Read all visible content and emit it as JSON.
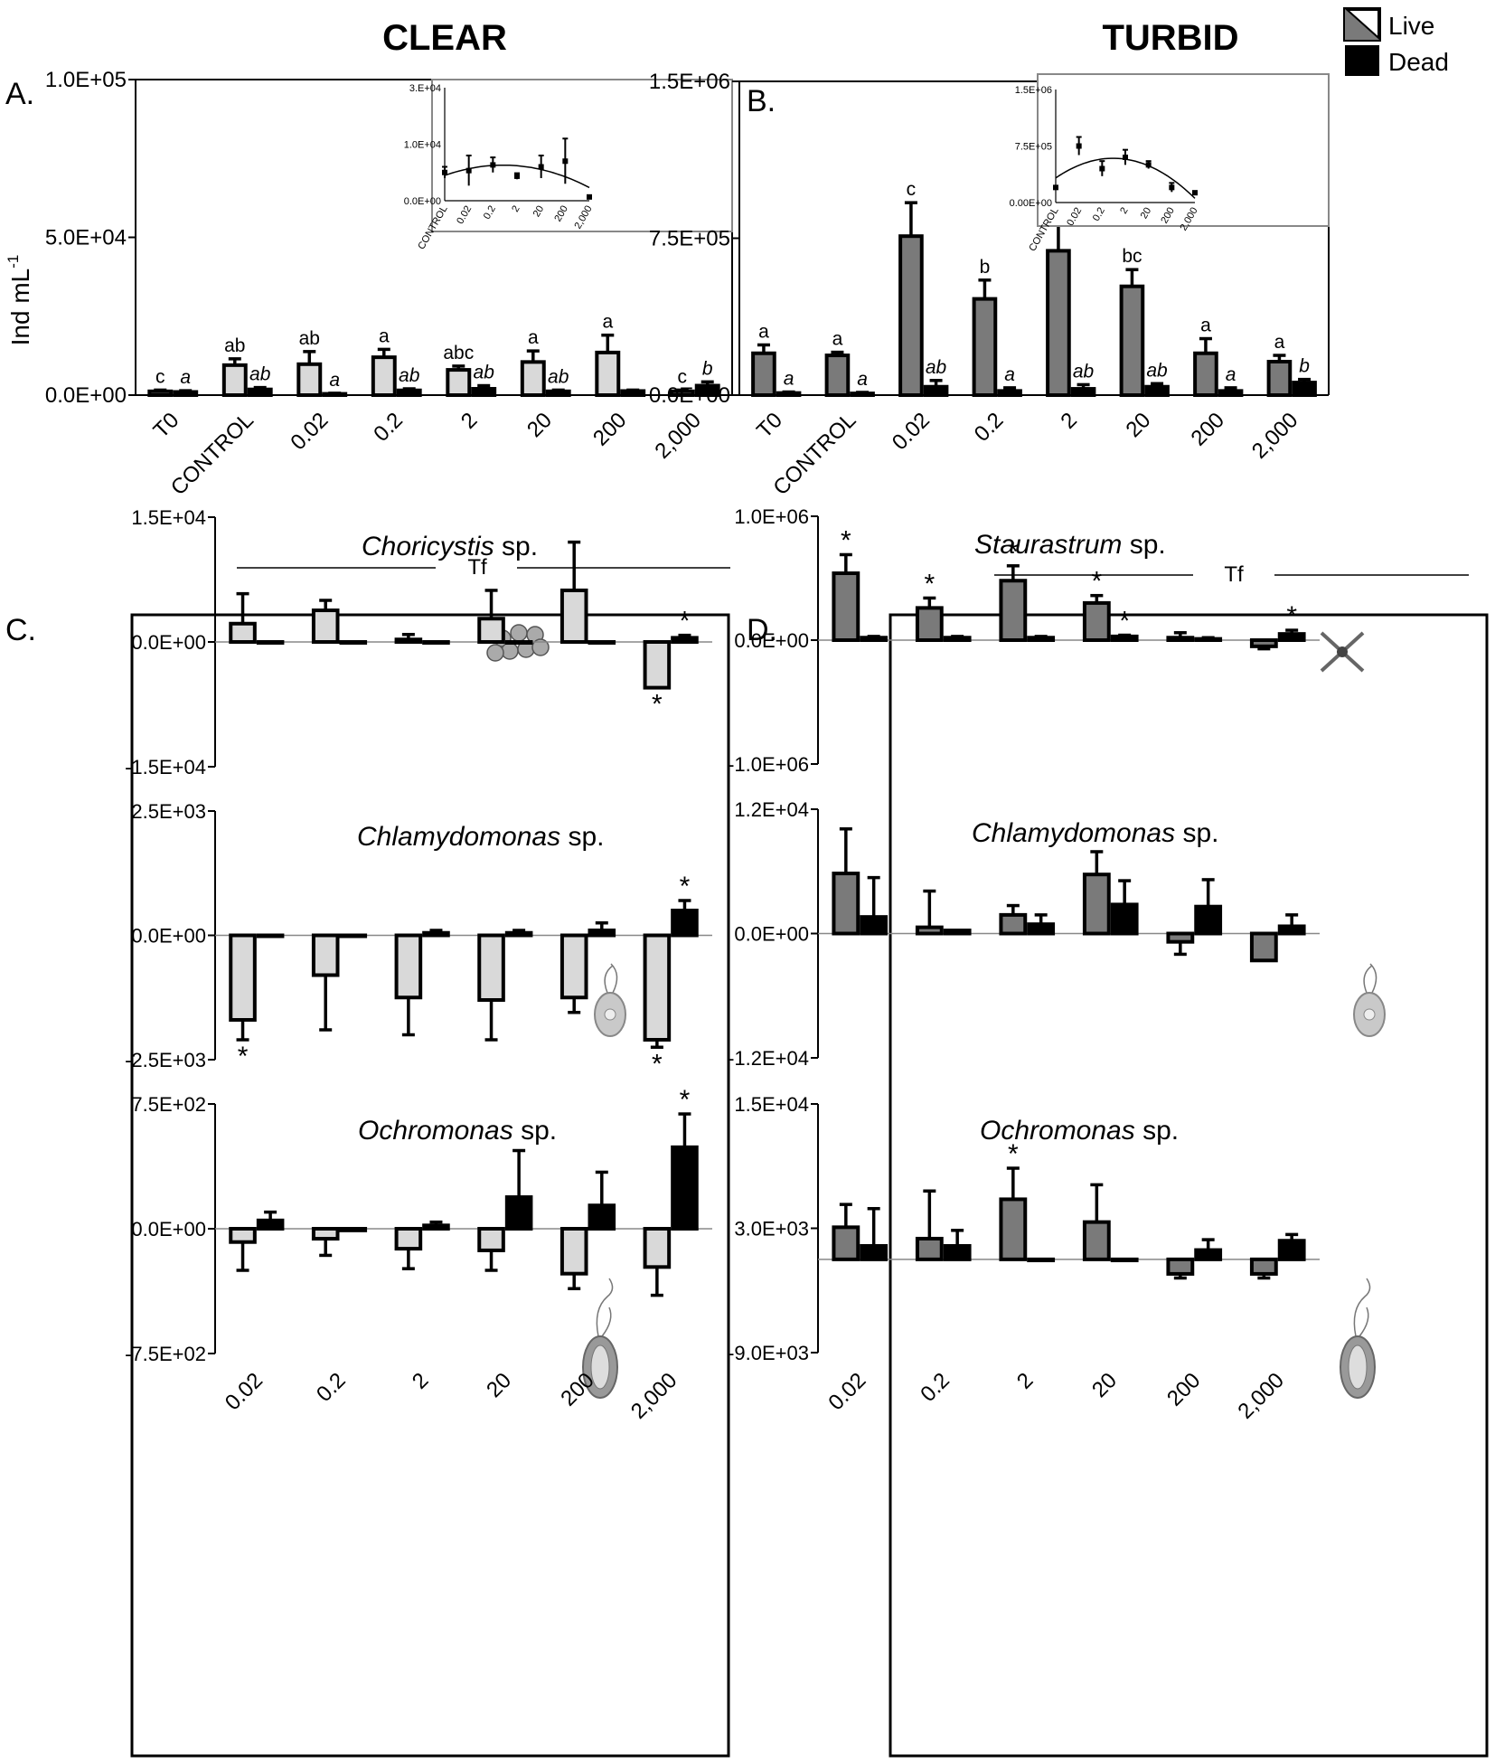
{
  "titles": {
    "clear": "CLEAR",
    "turbid": "TURBID"
  },
  "legend": {
    "live": "Live",
    "dead": "Dead"
  },
  "colors": {
    "clear_live": "#d9d9d9",
    "turbid_live": "#7a7a7a",
    "dead": "#000000"
  },
  "panel_labels": {
    "A": "A.",
    "B": "B.",
    "C": "C.",
    "D": "D."
  },
  "y_axis_label": "Ind mL",
  "y_axis_label_sup": "-1",
  "tf_label": "Tf",
  "icons": [
    "colony-cells-icon",
    "cell-icon",
    "flagellate-cell-icon",
    "star-desmid-icon"
  ],
  "chart_data": [
    {
      "id": "A",
      "type": "bar",
      "title": "CLEAR",
      "categories": [
        "T0",
        "CONTROL",
        "0.02",
        "0.2",
        "2",
        "20",
        "200",
        "2,000"
      ],
      "ylim": [
        0,
        100000
      ],
      "yticks": [
        "0.0E+00",
        "5.0E+04",
        "1.0E+05"
      ],
      "series": [
        {
          "name": "Live",
          "values": [
            1200,
            9500,
            9800,
            12000,
            8000,
            10500,
            13500,
            1200
          ],
          "errors": [
            400,
            2000,
            4000,
            2500,
            1200,
            3500,
            5500,
            400
          ],
          "labels": [
            "c",
            "ab",
            "ab",
            "a",
            "abc",
            "a",
            "a",
            "c"
          ]
        },
        {
          "name": "Dead",
          "values": [
            1000,
            1800,
            400,
            1500,
            2000,
            1200,
            1300,
            3000
          ],
          "errors": [
            400,
            600,
            200,
            500,
            1000,
            400,
            300,
            1200
          ],
          "labels": [
            "a",
            "ab",
            "a",
            "ab",
            "ab",
            "ab",
            "",
            "b"
          ]
        }
      ],
      "inset": {
        "categories": [
          "CONTROL",
          "0.02",
          "0.2",
          "2",
          "20",
          "200",
          "2,000"
        ],
        "ylim": [
          0,
          30000
        ],
        "yticks": [
          "0.0E+00",
          "1.0E+04",
          "3.E+04"
        ],
        "values": [
          7500,
          8000,
          9500,
          6500,
          9000,
          10500,
          1000
        ],
        "errors": [
          1500,
          4000,
          2000,
          800,
          3000,
          6000,
          400
        ]
      }
    },
    {
      "id": "B",
      "type": "bar",
      "title": "TURBID",
      "categories": [
        "T0",
        "CONTROL",
        "0.02",
        "0.2",
        "2",
        "20",
        "200",
        "2,000"
      ],
      "ylim": [
        0,
        1500000
      ],
      "yticks": [
        "0.0E+00",
        "7.5E+05",
        "1.5E+06"
      ],
      "series": [
        {
          "name": "Live",
          "values": [
            200000,
            190000,
            760000,
            460000,
            690000,
            520000,
            200000,
            160000
          ],
          "errors": [
            40000,
            15000,
            160000,
            90000,
            130000,
            80000,
            70000,
            30000
          ],
          "labels": [
            "a",
            "a",
            "c",
            "b",
            "bc",
            "bc",
            "a",
            "a"
          ]
        },
        {
          "name": "Dead",
          "values": [
            10000,
            8000,
            40000,
            20000,
            30000,
            40000,
            20000,
            60000
          ],
          "errors": [
            5000,
            5000,
            30000,
            15000,
            20000,
            15000,
            15000,
            15000
          ],
          "labels": [
            "a",
            "a",
            "ab",
            "a",
            "ab",
            "ab",
            "a",
            "b"
          ]
        }
      ],
      "inset": {
        "categories": [
          "CONTROL",
          "0.02",
          "0.2",
          "2",
          "20",
          "200",
          "2,000"
        ],
        "ylim": [
          0,
          1500000
        ],
        "yticks": [
          "0.00E+00",
          "7.5E+05",
          "1.5E+06"
        ],
        "values": [
          200000,
          750000,
          450000,
          600000,
          500000,
          200000,
          130000
        ],
        "errors": [
          20000,
          120000,
          100000,
          100000,
          50000,
          60000,
          20000
        ]
      }
    },
    {
      "id": "C1",
      "type": "bar",
      "species": "Choricystis",
      "suffix": "sp.",
      "categories": [
        "0.02",
        "0.2",
        "2",
        "20",
        "200",
        "2,000"
      ],
      "ylim": [
        -15000,
        15000
      ],
      "yticks": [
        "-1.5E+04",
        "0.0E+00",
        "1.5E+04"
      ],
      "series": [
        {
          "name": "Live",
          "values": [
            2200,
            3800,
            300,
            2800,
            6200,
            -5500
          ],
          "errors": [
            3600,
            1200,
            600,
            3400,
            5800,
            0
          ],
          "stars": [
            false,
            false,
            false,
            false,
            false,
            true
          ]
        },
        {
          "name": "Dead",
          "values": [
            0,
            0,
            0,
            0,
            0,
            500
          ],
          "errors": [
            0,
            0,
            0,
            0,
            0,
            300
          ],
          "stars": [
            false,
            false,
            false,
            false,
            false,
            true
          ]
        }
      ]
    },
    {
      "id": "C2",
      "type": "bar",
      "species": "Chlamydomonas",
      "suffix": "sp.",
      "categories": [
        "0.02",
        "0.2",
        "2",
        "20",
        "200",
        "2,000"
      ],
      "ylim": [
        -2500,
        2500
      ],
      "yticks": [
        "-2.5E+03",
        "0.0E+00",
        "2.5E+03"
      ],
      "series": [
        {
          "name": "Live",
          "values": [
            -1700,
            -800,
            -1250,
            -1300,
            -1250,
            -2100
          ],
          "errors": [
            400,
            1100,
            750,
            800,
            300,
            150
          ],
          "stars": [
            true,
            false,
            false,
            false,
            false,
            true
          ]
        },
        {
          "name": "Dead",
          "values": [
            0,
            0,
            50,
            50,
            100,
            500
          ],
          "errors": [
            0,
            0,
            50,
            50,
            150,
            200
          ],
          "stars": [
            false,
            false,
            false,
            false,
            false,
            true
          ]
        }
      ]
    },
    {
      "id": "C3",
      "type": "bar",
      "species": "Ochromonas",
      "suffix": "sp.",
      "categories": [
        "0.02",
        "0.2",
        "2",
        "20",
        "200",
        "2,000"
      ],
      "ylim": [
        -750,
        750
      ],
      "yticks": [
        "-7.5E+02",
        "0.0E+00",
        "7.5E+02"
      ],
      "series": [
        {
          "name": "Live",
          "values": [
            -80,
            -60,
            -120,
            -130,
            -270,
            -230
          ],
          "errors": [
            170,
            100,
            120,
            120,
            90,
            170
          ],
          "stars": [
            false,
            false,
            false,
            false,
            false,
            false
          ]
        },
        {
          "name": "Dead",
          "values": [
            50,
            -10,
            20,
            190,
            140,
            490
          ],
          "errors": [
            50,
            0,
            20,
            280,
            200,
            200
          ],
          "stars": [
            false,
            false,
            false,
            false,
            false,
            true
          ]
        }
      ]
    },
    {
      "id": "D1",
      "type": "bar",
      "species": "Staurastrum",
      "suffix": "sp.",
      "categories": [
        "0.02",
        "0.2",
        "2",
        "20",
        "200",
        "2,000"
      ],
      "ylim": [
        -1000000,
        1000000
      ],
      "yticks": [
        "-1.0E+06",
        "0.0E+00",
        "1.0E+06"
      ],
      "series": [
        {
          "name": "Live",
          "values": [
            540000,
            260000,
            480000,
            300000,
            20000,
            -50000
          ],
          "errors": [
            150000,
            80000,
            120000,
            60000,
            40000,
            20000
          ],
          "stars": [
            true,
            true,
            true,
            true,
            false,
            false
          ]
        },
        {
          "name": "Dead",
          "values": [
            20000,
            20000,
            20000,
            30000,
            10000,
            50000
          ],
          "errors": [
            10000,
            10000,
            10000,
            10000,
            10000,
            30000
          ],
          "stars": [
            false,
            false,
            false,
            true,
            false,
            true
          ]
        }
      ]
    },
    {
      "id": "D2",
      "type": "bar",
      "species": "Chlamydomonas",
      "suffix": "sp.",
      "categories": [
        "0.02",
        "0.2",
        "2",
        "20",
        "200",
        "2,000"
      ],
      "ylim": [
        -12000,
        12000
      ],
      "yticks": [
        "-1.2E+04",
        "0.0E+00",
        "1.2E+04"
      ],
      "series": [
        {
          "name": "Live",
          "values": [
            5800,
            600,
            1800,
            5700,
            -800,
            -2600
          ],
          "errors": [
            4300,
            3500,
            900,
            2200,
            1200,
            0
          ],
          "stars": [
            false,
            false,
            false,
            false,
            false,
            false
          ]
        },
        {
          "name": "Dead",
          "values": [
            1600,
            300,
            900,
            2800,
            2600,
            700
          ],
          "errors": [
            3800,
            0,
            900,
            2300,
            2600,
            1100
          ],
          "stars": [
            false,
            false,
            false,
            false,
            false,
            false
          ]
        }
      ]
    },
    {
      "id": "D3",
      "type": "bar",
      "species": "Ochromonas",
      "suffix": "sp.",
      "categories": [
        "0.02",
        "0.2",
        "2",
        "20",
        "200",
        "2,000"
      ],
      "ylim": [
        -9000,
        15000
      ],
      "yticks": [
        "-9.0E+03",
        "3.0E+03",
        "1.5E+04"
      ],
      "series": [
        {
          "name": "Live",
          "values": [
            3100,
            2000,
            5800,
            3600,
            -1400,
            -1400
          ],
          "errors": [
            2200,
            4600,
            3000,
            3600,
            400,
            400
          ],
          "stars": [
            false,
            false,
            true,
            false,
            false,
            false
          ]
        },
        {
          "name": "Dead",
          "values": [
            1300,
            1300,
            -100,
            -100,
            900,
            1800
          ],
          "errors": [
            3600,
            1500,
            0,
            0,
            1000,
            600
          ],
          "stars": [
            false,
            false,
            false,
            false,
            false,
            false
          ]
        }
      ]
    }
  ]
}
